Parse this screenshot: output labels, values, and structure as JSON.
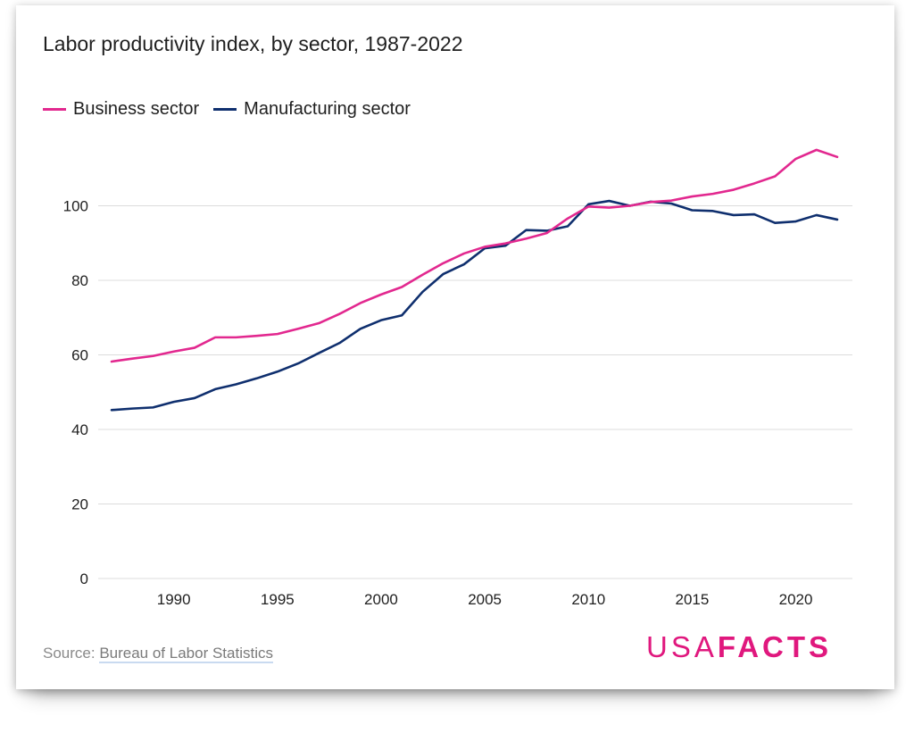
{
  "colors": {
    "business": "#e2288f",
    "manufacturing": "#0f2f6e",
    "grid": "#dcdcdc",
    "logo": "#e0187e"
  },
  "source": {
    "prefix": "Source: ",
    "link_text": "Bureau of Labor Statistics"
  },
  "logo": {
    "part1": "USA",
    "part2": "FACTS"
  },
  "chart_data": {
    "type": "line",
    "title": "Labor productivity index, by sector, 1987-2022",
    "xlabel": "",
    "ylabel": "",
    "ylim": [
      0,
      115
    ],
    "xlim": [
      1987,
      2022
    ],
    "yticks": [
      0,
      20,
      40,
      60,
      80,
      100
    ],
    "xticks": [
      1990,
      1995,
      2000,
      2005,
      2010,
      2015,
      2020
    ],
    "grid": true,
    "legend_position": "top-left",
    "x": [
      1987,
      1988,
      1989,
      1990,
      1991,
      1992,
      1993,
      1994,
      1995,
      1996,
      1997,
      1998,
      1999,
      2000,
      2001,
      2002,
      2003,
      2004,
      2005,
      2006,
      2007,
      2008,
      2009,
      2010,
      2011,
      2012,
      2013,
      2014,
      2015,
      2016,
      2017,
      2018,
      2019,
      2020,
      2021,
      2022
    ],
    "series": [
      {
        "name": "Business sector",
        "key": "business",
        "values": [
          58.2,
          59.0,
          59.7,
          60.9,
          61.9,
          64.7,
          64.7,
          65.1,
          65.6,
          67.0,
          68.5,
          71.0,
          73.9,
          76.2,
          78.2,
          81.5,
          84.6,
          87.2,
          89.0,
          89.9,
          91.2,
          92.7,
          96.6,
          99.8,
          99.5,
          100.0,
          101.0,
          101.4,
          102.5,
          103.2,
          104.3,
          106.0,
          107.9,
          112.6,
          115.0,
          113.1
        ]
      },
      {
        "name": "Manufacturing sector",
        "key": "manufacturing",
        "values": [
          45.2,
          45.6,
          45.9,
          47.4,
          48.4,
          50.8,
          52.1,
          53.7,
          55.5,
          57.7,
          60.5,
          63.2,
          67.0,
          69.3,
          70.6,
          76.9,
          81.7,
          84.3,
          88.6,
          89.3,
          93.5,
          93.3,
          94.5,
          100.4,
          101.3,
          100.0,
          101.1,
          100.6,
          98.8,
          98.6,
          97.5,
          97.7,
          95.4,
          95.8,
          97.5,
          96.3
        ]
      }
    ]
  }
}
